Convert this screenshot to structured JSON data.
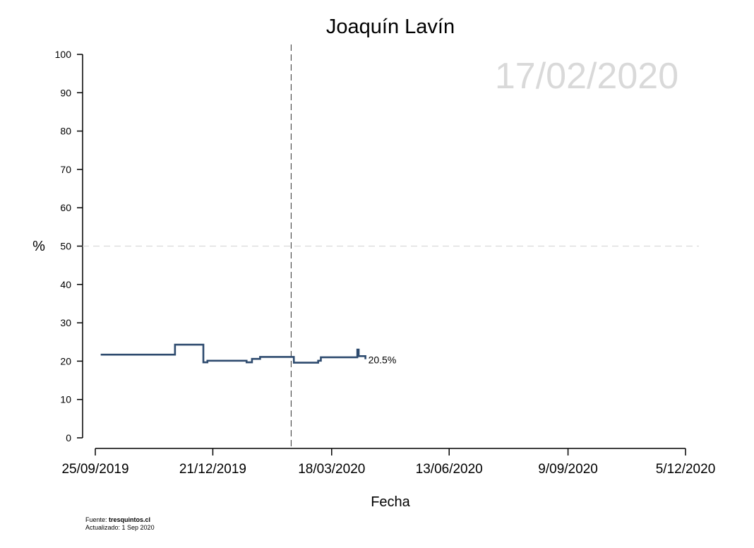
{
  "chart_data": {
    "type": "line",
    "title": "Joaquín Lavín",
    "xlabel": "Fecha",
    "ylabel": "%",
    "ylim": [
      0,
      100
    ],
    "yticks": [
      "0",
      "10",
      "20",
      "30",
      "40",
      "50",
      "60",
      "70",
      "80",
      "90",
      "100"
    ],
    "xlim": [
      "2019-09-25",
      "2020-12-05"
    ],
    "xticks": [
      "25/09/2019",
      "21/12/2019",
      "18/03/2020",
      "13/06/2020",
      "9/09/2020",
      "5/12/2020"
    ],
    "reference_line_y": 50,
    "current_date_marker": "2020-02-17",
    "watermark_date": "17/02/2020",
    "end_label": "20.5%",
    "step": true,
    "series": [
      {
        "color": "#2d4a6e",
        "points": [
          [
            "2019-09-29",
            21.7
          ],
          [
            "2019-11-23",
            24.3
          ],
          [
            "2019-12-14",
            19.7
          ],
          [
            "2019-12-17",
            20.1
          ],
          [
            "2020-01-15",
            19.7
          ],
          [
            "2020-01-19",
            20.6
          ],
          [
            "2020-01-25",
            21.1
          ],
          [
            "2020-02-19",
            19.6
          ],
          [
            "2020-03-08",
            20.1
          ],
          [
            "2020-03-10",
            21.0
          ],
          [
            "2020-04-06",
            23.0
          ],
          [
            "2020-04-07",
            21.3
          ],
          [
            "2020-04-12",
            20.5
          ]
        ]
      }
    ]
  },
  "footer": {
    "source_prefix": "Fuente: ",
    "source_name": "tresquintos.cl",
    "updated": "Actualizado: 1 Sep 2020"
  },
  "colors": {
    "line": "#2d4a6e",
    "watermark": "#d9d9d9",
    "reference": "#d9d9d9"
  }
}
